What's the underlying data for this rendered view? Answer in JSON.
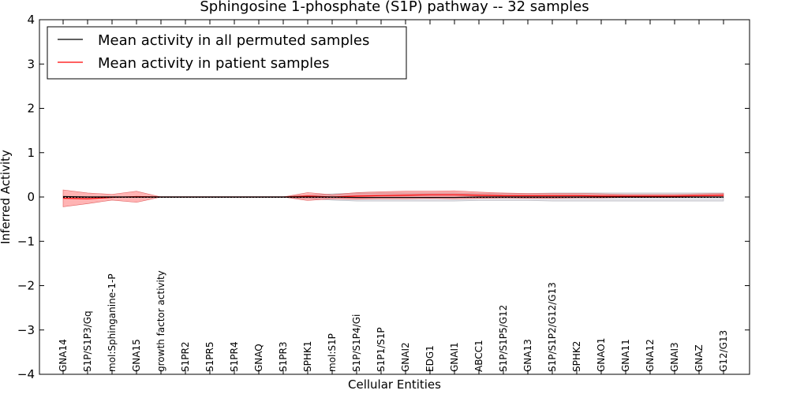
{
  "chart_data": {
    "type": "line",
    "title": "Sphingosine 1-phosphate (S1P) pathway -- 32 samples",
    "xlabel": "Cellular Entities",
    "ylabel": "Inferred Activity",
    "ylim": [
      -4,
      4
    ],
    "yticks": [
      -4,
      -3,
      -2,
      -1,
      0,
      1,
      2,
      3,
      4
    ],
    "ytick_labels": [
      "−4",
      "−3",
      "−2",
      "−1",
      "0",
      "1",
      "2",
      "3",
      "4"
    ],
    "grid": false,
    "legend_position": "top-left",
    "categories": [
      "GNA14",
      "S1P/S1P3/Gq",
      "mol:Sphinganine-1-P",
      "GNA15",
      "growth factor activity",
      "S1PR2",
      "S1PR5",
      "S1PR4",
      "GNAQ",
      "S1PR3",
      "SPHK1",
      "mol:S1P",
      "S1P/S1P4/Gi",
      "S1P1/S1P",
      "GNAI2",
      "EDG1",
      "GNAI1",
      "ABCC1",
      "S1P/S1P5/G12",
      "GNA13",
      "S1P/S1P2/G12/G13",
      "SPHK2",
      "GNAO1",
      "GNA11",
      "GNA12",
      "GNAI3",
      "GNAZ",
      "G12/G13"
    ],
    "series": [
      {
        "name": "Mean activity in all permuted samples",
        "color": "#000000",
        "values": [
          0.01,
          0.0,
          0.0,
          0.0,
          0.0,
          0.0,
          0.0,
          0.0,
          0.0,
          0.0,
          0.0,
          0.0,
          -0.01,
          -0.01,
          -0.01,
          -0.01,
          -0.01,
          0.0,
          0.0,
          0.0,
          0.0,
          0.0,
          0.0,
          0.0,
          0.0,
          0.0,
          0.0,
          0.0
        ],
        "lower": [
          -0.02,
          -0.01,
          -0.01,
          -0.01,
          -0.01,
          -0.01,
          -0.01,
          -0.01,
          -0.01,
          -0.01,
          -0.04,
          -0.07,
          -0.09,
          -0.09,
          -0.09,
          -0.09,
          -0.09,
          -0.08,
          -0.08,
          -0.08,
          -0.09,
          -0.09,
          -0.09,
          -0.09,
          -0.09,
          -0.09,
          -0.09,
          -0.09
        ],
        "upper": [
          0.02,
          0.01,
          0.01,
          0.01,
          0.01,
          0.01,
          0.01,
          0.01,
          0.01,
          0.01,
          0.04,
          0.07,
          0.09,
          0.09,
          0.09,
          0.09,
          0.09,
          0.08,
          0.08,
          0.08,
          0.09,
          0.09,
          0.09,
          0.09,
          0.09,
          0.09,
          0.09,
          0.09
        ]
      },
      {
        "name": "Mean activity in patient samples",
        "color": "#ff0000",
        "values": [
          -0.03,
          -0.04,
          -0.01,
          0.01,
          0.0,
          0.0,
          0.0,
          0.0,
          0.0,
          0.0,
          0.02,
          0.0,
          0.02,
          0.03,
          0.04,
          0.05,
          0.05,
          0.04,
          0.03,
          0.03,
          0.03,
          0.03,
          0.02,
          0.02,
          0.02,
          0.02,
          0.03,
          0.04
        ],
        "lower": [
          -0.22,
          -0.15,
          -0.07,
          -0.12,
          0.0,
          0.0,
          0.0,
          0.0,
          0.0,
          0.0,
          -0.08,
          -0.04,
          -0.05,
          -0.04,
          -0.04,
          -0.03,
          -0.04,
          -0.03,
          -0.02,
          -0.03,
          -0.03,
          -0.02,
          -0.02,
          -0.01,
          -0.01,
          -0.01,
          0.0,
          0.0
        ],
        "upper": [
          0.16,
          0.09,
          0.06,
          0.13,
          0.0,
          0.0,
          0.0,
          0.0,
          0.0,
          0.0,
          0.1,
          0.05,
          0.1,
          0.12,
          0.13,
          0.13,
          0.14,
          0.11,
          0.09,
          0.08,
          0.08,
          0.08,
          0.07,
          0.06,
          0.06,
          0.06,
          0.07,
          0.08
        ]
      }
    ]
  }
}
